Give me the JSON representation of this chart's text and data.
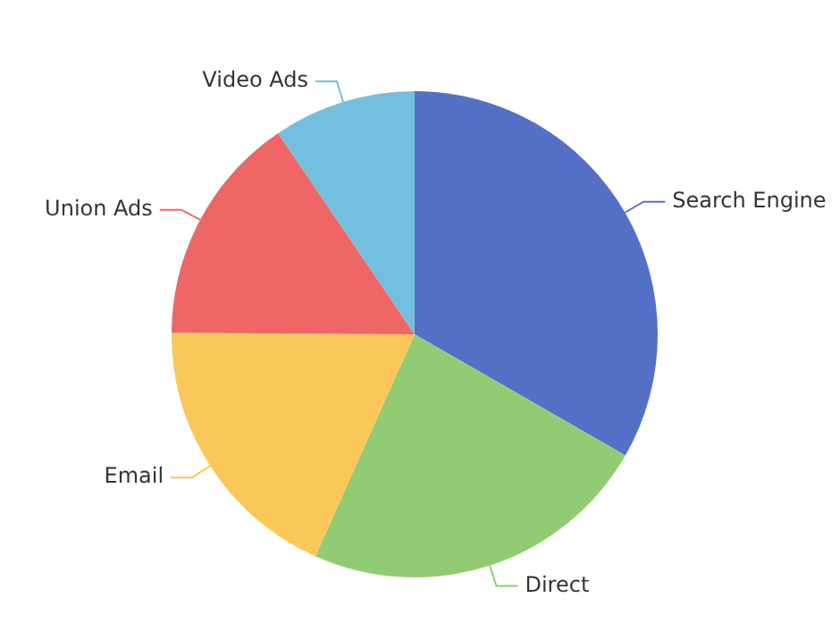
{
  "chart_data": {
    "type": "pie",
    "categories": [
      "Search Engine",
      "Direct",
      "Email",
      "Union Ads",
      "Video Ads"
    ],
    "values": [
      33.3,
      23.4,
      18.4,
      15.4,
      9.5
    ],
    "colors": [
      "#5470c6",
      "#91cc75",
      "#fac858",
      "#ee6666",
      "#73c0de"
    ],
    "legend": false
  }
}
